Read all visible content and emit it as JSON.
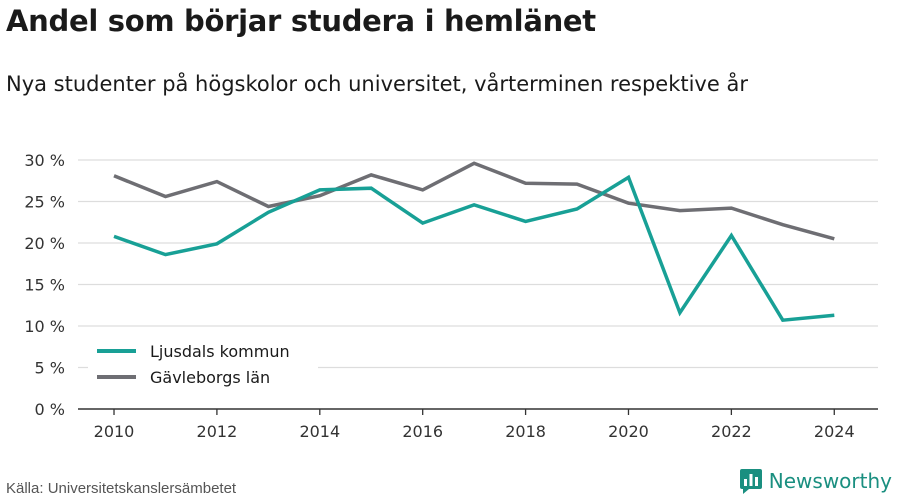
{
  "title": "Andel som börjar studera i hemlänet",
  "subtitle": "Nya studenter på högskolor och universitet, vårterminen respektive år",
  "source": "Källa: Universitetskanslersämbetet",
  "brand": "Newsworthy",
  "chart_data": {
    "type": "line",
    "x": [
      2010,
      2011,
      2012,
      2013,
      2014,
      2015,
      2016,
      2017,
      2018,
      2019,
      2020,
      2021,
      2022,
      2023,
      2024
    ],
    "x_ticks": [
      2010,
      2012,
      2014,
      2016,
      2018,
      2020,
      2022,
      2024
    ],
    "x_tick_labels": [
      "2010",
      "2012",
      "2014",
      "2016",
      "2018",
      "2020",
      "2022",
      "2024"
    ],
    "y_ticks": [
      0,
      5,
      10,
      15,
      20,
      25,
      30
    ],
    "y_tick_labels": [
      "0 %",
      "5 %",
      "10 %",
      "15 %",
      "20 %",
      "25 %",
      "30 %"
    ],
    "ylim": [
      0,
      30
    ],
    "grid": true,
    "legend_position": "bottom-left",
    "series": [
      {
        "name": "Ljusdals kommun",
        "color": "#18a096",
        "values": [
          20.8,
          18.6,
          19.9,
          23.7,
          26.4,
          26.6,
          22.4,
          24.6,
          22.6,
          24.1,
          27.9,
          11.6,
          20.9,
          10.7,
          11.3
        ]
      },
      {
        "name": "Gävleborgs län",
        "color": "#6e6e73",
        "values": [
          28.1,
          25.6,
          27.4,
          24.4,
          25.7,
          28.2,
          26.4,
          29.6,
          27.2,
          27.1,
          24.8,
          23.9,
          24.2,
          22.2,
          20.5
        ]
      }
    ],
    "colors": {
      "grid": "#dddddd",
      "axis": "#333333",
      "text": "#333333"
    }
  }
}
